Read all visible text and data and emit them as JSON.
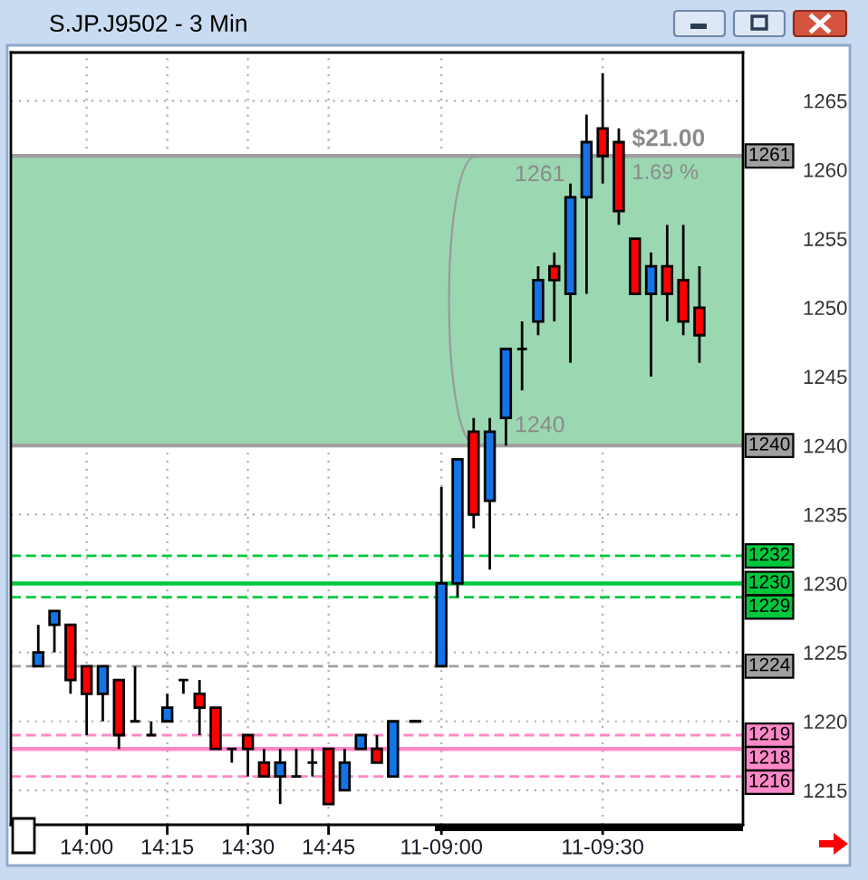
{
  "chart_data": {
    "type": "candlestick",
    "title": "S.JP.J9502 - 3 Min",
    "categories": [
      null,
      null,
      null,
      "14:00",
      null,
      null,
      null,
      null,
      "14:15",
      null,
      null,
      null,
      null,
      "14:30",
      null,
      null,
      null,
      null,
      "14:45",
      null,
      null,
      null,
      null,
      null,
      null,
      "11-09:00",
      null,
      null,
      null,
      null,
      null,
      null,
      null,
      null,
      null,
      "11-09:30",
      null,
      null,
      null,
      null,
      null,
      null
    ],
    "ohlc": [
      [
        1224,
        1227,
        1224,
        1225
      ],
      [
        1227,
        1228,
        1225,
        1228
      ],
      [
        1227,
        1227,
        1222,
        1223
      ],
      [
        1224,
        1224,
        1219,
        1222
      ],
      [
        1222,
        1224,
        1220,
        1224
      ],
      [
        1223,
        1223,
        1218,
        1219
      ],
      [
        1220,
        1224,
        1220,
        1220
      ],
      [
        1219,
        1220,
        1219,
        1219
      ],
      [
        1220,
        1222,
        1220,
        1221
      ],
      [
        1223,
        1223,
        1222,
        1223
      ],
      [
        1222,
        1223,
        1219,
        1221
      ],
      [
        1221,
        1221,
        1218,
        1218
      ],
      [
        1218,
        1218,
        1217,
        1218
      ],
      [
        1219,
        1219,
        1216,
        1218
      ],
      [
        1217,
        1218,
        1216,
        1216
      ],
      [
        1216,
        1218,
        1214,
        1217
      ],
      [
        1216,
        1218,
        1216,
        1216
      ],
      [
        1217,
        1218,
        1216,
        1217
      ],
      [
        1218,
        1218,
        1214,
        1214
      ],
      [
        1215,
        1218,
        1215,
        1217
      ],
      [
        1218,
        1219,
        1218,
        1219
      ],
      [
        1218,
        1219,
        1217,
        1217
      ],
      [
        1216,
        1220,
        1216,
        1220
      ],
      null,
      null,
      [
        1224,
        1237,
        1224,
        1230
      ],
      [
        1230,
        1239,
        1229,
        1239
      ],
      [
        1241,
        1242,
        1234,
        1235
      ],
      [
        1236,
        1242,
        1231,
        1241
      ],
      [
        1242,
        1247,
        1240,
        1247
      ],
      [
        1247,
        1249,
        1244,
        1247
      ],
      [
        1249,
        1253,
        1248,
        1252
      ],
      [
        1253,
        1254,
        1249,
        1252
      ],
      [
        1251,
        1259,
        1246,
        1258
      ],
      [
        1258,
        1264,
        1251,
        1262
      ],
      [
        1263,
        1267,
        1259,
        1261
      ],
      [
        1262,
        1263,
        1256,
        1257
      ],
      [
        1255,
        1255,
        1251,
        1251
      ],
      [
        1251,
        1254,
        1245,
        1253
      ],
      [
        1253,
        1256,
        1249,
        1251
      ],
      [
        1252,
        1256,
        1248,
        1249
      ],
      [
        1250,
        1253,
        1246,
        1248
      ]
    ],
    "colors": [
      "#1473e6",
      "#1473e6",
      "#ff0000",
      "#ff0000",
      "#1473e6",
      "#ff0000",
      "#000000",
      "#000000",
      "#1473e6",
      "#000000",
      "#ff0000",
      "#ff0000",
      "#000000",
      "#ff0000",
      "#ff0000",
      "#1473e6",
      "#000000",
      "#000000",
      "#ff0000",
      "#1473e6",
      "#1473e6",
      "#ff0000",
      "#1473e6",
      null,
      null,
      "#1473e6",
      "#1473e6",
      "#ff0000",
      "#1473e6",
      "#1473e6",
      "#000000",
      "#1473e6",
      "#ff0000",
      "#1473e6",
      "#1473e6",
      "#ff0000",
      "#ff0000",
      "#ff0000",
      "#1473e6",
      "#ff0000",
      "#ff0000",
      "#ff0000"
    ],
    "series": [
      {
        "type": "line",
        "color": "#000000",
        "line_style": "dashed",
        "values": [
          null,
          null,
          null,
          null,
          null,
          null,
          null,
          null,
          null,
          null,
          null,
          null,
          null,
          null,
          null,
          null,
          null,
          null,
          null,
          null,
          null,
          null,
          null,
          1220,
          1220,
          null,
          null,
          null,
          null,
          null,
          null,
          null,
          null,
          null,
          null,
          null,
          null,
          null,
          null,
          null,
          null,
          null
        ]
      }
    ],
    "ylim": [
      1212.5,
      1268.5
    ],
    "yticks": [
      1215,
      1220,
      1225,
      1230,
      1235,
      1240,
      1245,
      1250,
      1255,
      1260,
      1265
    ],
    "grid": true,
    "bands": [
      {
        "axis": "y",
        "from": 1240,
        "to": 1261,
        "color": "#9bd8b2"
      }
    ],
    "ref_lines": [
      {
        "axis": "y",
        "value": 1261,
        "label": "1261",
        "color": "#a0a0a0",
        "line_style": "solid"
      },
      {
        "axis": "y",
        "value": 1240,
        "label": "1240",
        "color": "#a0a0a0",
        "line_style": "solid"
      },
      {
        "axis": "y",
        "value": 1232,
        "label": "1232",
        "color": "#00c83c",
        "line_style": "dashed"
      },
      {
        "axis": "y",
        "value": 1230,
        "label": "1230",
        "color": "#00c83c",
        "line_style": "solid"
      },
      {
        "axis": "y",
        "value": 1229,
        "label": "1229",
        "color": "#00c83c",
        "line_style": "dashed"
      },
      {
        "axis": "y",
        "value": 1224,
        "label": "1224",
        "color": "#a0a0a0",
        "line_style": "dashed"
      },
      {
        "axis": "y",
        "value": 1219,
        "label": "1219",
        "color": "#ff88c8",
        "line_style": "dashed"
      },
      {
        "axis": "y",
        "value": 1218,
        "label": "1218",
        "color": "#ff88c8",
        "line_style": "solid"
      },
      {
        "axis": "y",
        "value": 1216,
        "label": "1216",
        "color": "#ff88c8",
        "line_style": "dashed"
      }
    ],
    "annotations": [
      {
        "text": "1261",
        "y": 1261
      },
      {
        "text": "1240",
        "y": 1240
      },
      "$21.00",
      "1.69 %"
    ]
  }
}
